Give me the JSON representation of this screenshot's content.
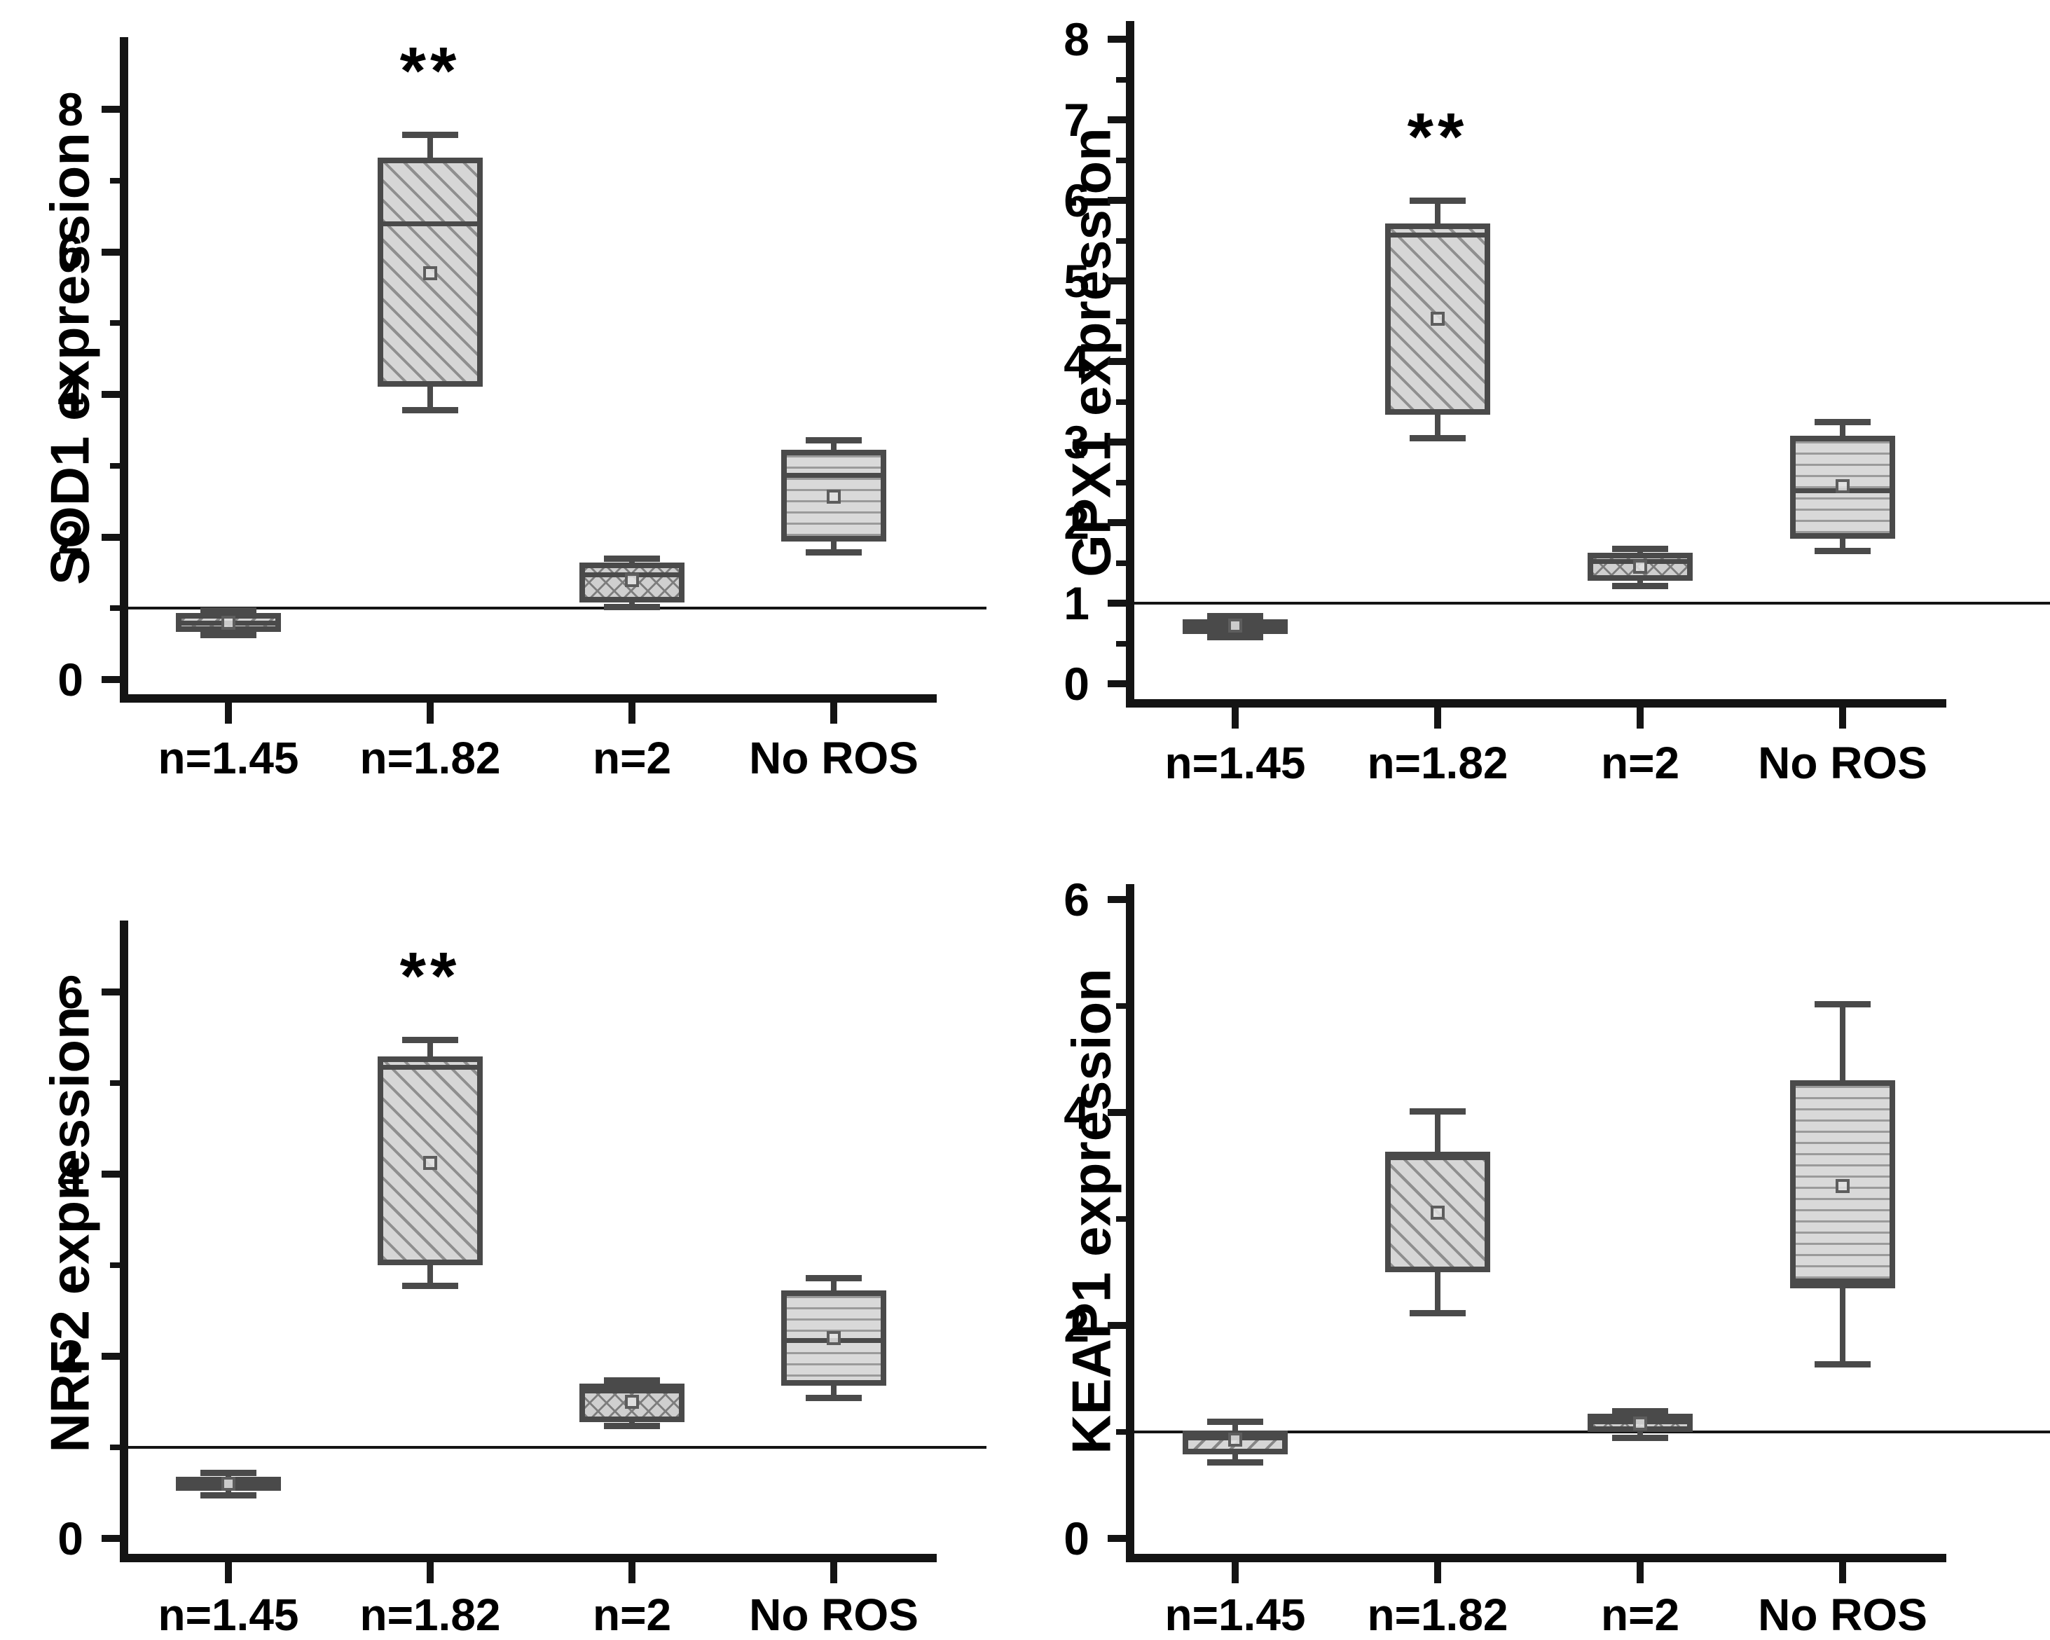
{
  "figure": {
    "description": "Four box-plot panels of antioxidant gene expression versus ROS condition",
    "colors": {
      "background": "#ffffff",
      "axis": "#141414",
      "box_border": "#4a4a4a",
      "box_fill": "#d6d6d6",
      "hatch_line": "#8f8f8f",
      "text": "#000000",
      "reference_line": "#141414"
    }
  },
  "chart_data": [
    {
      "id": "sod1",
      "type": "box",
      "ylabel": "SOD1 expression",
      "categories": [
        "n=1.45",
        "n=1.82",
        "n=2",
        "No ROS"
      ],
      "yticks": [
        0,
        2,
        4,
        6,
        8
      ],
      "ylim": [
        0,
        9.3
      ],
      "grid": false,
      "reference_line": 1,
      "significance": [
        {
          "category": "n=1.82",
          "label": "**"
        }
      ],
      "boxes": [
        {
          "category": "n=1.45",
          "pattern": "diagonal-forward",
          "whisker_low": 0.63,
          "q1": 0.67,
          "median": 0.8,
          "q3": 0.93,
          "whisker_high": 0.97,
          "mean": 0.8
        },
        {
          "category": "n=1.82",
          "pattern": "diagonal-back",
          "whisker_low": 3.78,
          "q1": 4.11,
          "median": 6.4,
          "q3": 7.32,
          "whisker_high": 7.65,
          "mean": 5.7
        },
        {
          "category": "n=2",
          "pattern": "crosshatch",
          "whisker_low": 1.02,
          "q1": 1.08,
          "median": 1.47,
          "q3": 1.64,
          "whisker_high": 1.7,
          "mean": 1.4
        },
        {
          "category": "No ROS",
          "pattern": "horizontal",
          "whisker_low": 1.79,
          "q1": 1.94,
          "median": 2.87,
          "q3": 3.22,
          "whisker_high": 3.36,
          "mean": 2.57
        }
      ]
    },
    {
      "id": "gpx1",
      "type": "box",
      "ylabel": "GPX1 expression",
      "categories": [
        "n=1.45",
        "n=1.82",
        "n=2",
        "No ROS"
      ],
      "yticks": [
        0,
        1,
        2,
        3,
        4,
        5,
        6,
        7,
        8
      ],
      "ylim": [
        0,
        8.25
      ],
      "grid": false,
      "reference_line": 1,
      "significance": [
        {
          "category": "n=1.82",
          "label": "**"
        }
      ],
      "boxes": [
        {
          "category": "n=1.45",
          "pattern": "diagonal-forward",
          "whisker_low": 0.58,
          "q1": 0.62,
          "median": 0.72,
          "q3": 0.8,
          "whisker_high": 0.84,
          "mean": 0.72
        },
        {
          "category": "n=1.82",
          "pattern": "diagonal-back",
          "whisker_low": 3.05,
          "q1": 3.34,
          "median": 5.57,
          "q3": 5.71,
          "whisker_high": 6.0,
          "mean": 4.53
        },
        {
          "category": "n=2",
          "pattern": "crosshatch",
          "whisker_low": 1.22,
          "q1": 1.28,
          "median": 1.52,
          "q3": 1.63,
          "whisker_high": 1.68,
          "mean": 1.45
        },
        {
          "category": "No ROS",
          "pattern": "horizontal",
          "whisker_low": 1.65,
          "q1": 1.8,
          "median": 2.4,
          "q3": 3.08,
          "whisker_high": 3.25,
          "mean": 2.45
        }
      ]
    },
    {
      "id": "nrf2",
      "type": "box",
      "ylabel": "NRF2 expression",
      "categories": [
        "n=1.45",
        "n=1.82",
        "n=2",
        "No ROS"
      ],
      "yticks": [
        0,
        2,
        4,
        6
      ],
      "ylim": [
        0,
        6.8
      ],
      "grid": false,
      "reference_line": 1,
      "significance": [
        {
          "category": "n=1.82",
          "label": "**"
        }
      ],
      "boxes": [
        {
          "category": "n=1.45",
          "pattern": "diagonal-forward",
          "whisker_low": 0.48,
          "q1": 0.52,
          "median": 0.6,
          "q3": 0.68,
          "whisker_high": 0.72,
          "mean": 0.6
        },
        {
          "category": "n=1.82",
          "pattern": "diagonal-back",
          "whisker_low": 2.78,
          "q1": 3.0,
          "median": 5.18,
          "q3": 5.29,
          "whisker_high": 5.48,
          "mean": 4.12
        },
        {
          "category": "n=2",
          "pattern": "crosshatch",
          "whisker_low": 1.24,
          "q1": 1.28,
          "median": 1.62,
          "q3": 1.7,
          "whisker_high": 1.74,
          "mean": 1.5
        },
        {
          "category": "No ROS",
          "pattern": "horizontal",
          "whisker_low": 1.55,
          "q1": 1.68,
          "median": 2.18,
          "q3": 2.72,
          "whisker_high": 2.86,
          "mean": 2.2
        }
      ]
    },
    {
      "id": "keap1",
      "type": "box",
      "ylabel": "KEAP1 expression",
      "categories": [
        "n=1.45",
        "n=1.82",
        "n=2",
        "No ROS"
      ],
      "yticks": [
        0,
        2,
        4,
        6
      ],
      "ylim": [
        0,
        6.2
      ],
      "grid": false,
      "reference_line": 1,
      "significance": [],
      "boxes": [
        {
          "category": "n=1.45",
          "pattern": "diagonal-forward",
          "whisker_low": 0.72,
          "q1": 0.79,
          "median": 0.95,
          "q3": 1.01,
          "whisker_high": 1.1,
          "mean": 0.93
        },
        {
          "category": "n=1.82",
          "pattern": "diagonal-back",
          "whisker_low": 2.12,
          "q1": 2.5,
          "median": 3.58,
          "q3": 3.63,
          "whisker_high": 4.01,
          "mean": 3.06
        },
        {
          "category": "n=2",
          "pattern": "crosshatch",
          "whisker_low": 0.95,
          "q1": 1.0,
          "median": 1.1,
          "q3": 1.17,
          "whisker_high": 1.2,
          "mean": 1.08
        },
        {
          "category": "No ROS",
          "pattern": "horizontal",
          "whisker_low": 1.64,
          "q1": 2.35,
          "median": 2.42,
          "q3": 4.3,
          "whisker_high": 5.02,
          "mean": 3.31
        }
      ]
    }
  ]
}
